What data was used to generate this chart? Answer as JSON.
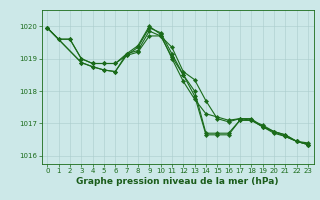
{
  "line1": {
    "x": [
      0,
      1,
      2,
      3,
      4,
      5,
      6,
      7,
      8,
      9,
      10,
      11,
      12,
      13,
      14,
      15,
      16,
      17,
      18,
      19,
      20,
      21,
      22,
      23
    ],
    "y": [
      1019.95,
      1019.6,
      1019.6,
      1019.0,
      1018.85,
      1018.85,
      1018.85,
      1019.1,
      1019.35,
      1019.95,
      1019.8,
      1019.15,
      1018.5,
      1018.0,
      1016.7,
      1016.7,
      1016.7,
      1017.1,
      1017.1,
      1016.9,
      1016.7,
      1016.6,
      1016.45,
      1016.4
    ]
  },
  "line2": {
    "x": [
      0,
      1,
      2,
      3,
      4,
      5,
      6,
      7,
      8,
      9,
      10,
      11,
      12,
      13,
      14,
      15,
      16,
      17,
      18,
      19,
      20,
      21,
      22,
      23
    ],
    "y": [
      1019.95,
      1019.6,
      1019.6,
      1019.0,
      1018.85,
      1018.85,
      1018.85,
      1019.15,
      1019.4,
      1020.0,
      1019.75,
      1019.0,
      1018.3,
      1017.75,
      1017.3,
      1017.2,
      1017.1,
      1017.15,
      1017.15,
      1016.9,
      1016.75,
      1016.65,
      1016.45,
      1016.35
    ]
  },
  "line3": {
    "x": [
      0,
      3,
      4,
      5,
      6,
      7,
      8,
      9,
      10,
      11,
      12,
      13,
      14,
      15,
      16,
      17,
      18,
      19,
      20,
      21,
      22,
      23
    ],
    "y": [
      1019.95,
      1018.88,
      1018.75,
      1018.65,
      1018.6,
      1019.15,
      1019.25,
      1019.85,
      1019.7,
      1019.35,
      1018.6,
      1018.35,
      1017.7,
      1017.15,
      1017.05,
      1017.15,
      1017.1,
      1016.9,
      1016.75,
      1016.65,
      1016.45,
      1016.35
    ]
  },
  "line4": {
    "x": [
      0,
      3,
      4,
      5,
      6,
      7,
      8,
      9,
      10,
      11,
      12,
      13,
      14,
      15,
      16,
      17,
      18,
      19,
      20,
      21,
      22,
      23
    ],
    "y": [
      1019.95,
      1018.88,
      1018.75,
      1018.65,
      1018.6,
      1019.1,
      1019.2,
      1019.7,
      1019.7,
      1019.05,
      1018.5,
      1017.85,
      1016.65,
      1016.65,
      1016.65,
      1017.1,
      1017.1,
      1016.95,
      1016.75,
      1016.6,
      1016.45,
      1016.35
    ]
  },
  "line_color": "#1a6b1a",
  "bg_color": "#cce8e8",
  "grid_color": "#aacccc",
  "xlabel": "Graphe pression niveau de la mer (hPa)",
  "xlabel_color": "#1a5c1a",
  "ylim": [
    1015.75,
    1020.5
  ],
  "xlim": [
    -0.5,
    23.5
  ],
  "yticks": [
    1016,
    1017,
    1018,
    1019,
    1020
  ],
  "xticks": [
    0,
    1,
    2,
    3,
    4,
    5,
    6,
    7,
    8,
    9,
    10,
    11,
    12,
    13,
    14,
    15,
    16,
    17,
    18,
    19,
    20,
    21,
    22,
    23
  ],
  "tick_color": "#1a6b1a",
  "tick_fontsize": 5.0,
  "xlabel_fontsize": 6.5,
  "marker_size": 2.2,
  "line_width": 0.8
}
